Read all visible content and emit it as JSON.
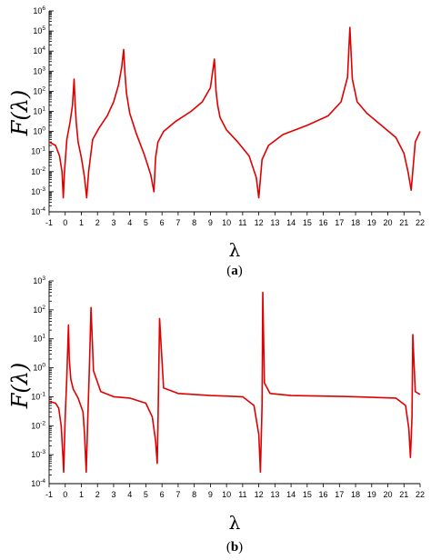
{
  "chart_data": [
    {
      "panel": "a",
      "caption": {
        "open": "(",
        "letter": "a",
        "close": ")"
      },
      "type": "line",
      "ylabel": "F(λ)",
      "xlabel": "λ",
      "xlim": [
        -1,
        22
      ],
      "ylim": [
        0.0001,
        1000000
      ],
      "yscale": "log",
      "x_ticks": [
        -1,
        0,
        1,
        2,
        3,
        4,
        5,
        6,
        7,
        8,
        9,
        10,
        11,
        12,
        13,
        14,
        15,
        16,
        17,
        18,
        19,
        20,
        21,
        22
      ],
      "y_ticks": [
        {
          "base": "10",
          "exp": "6"
        },
        {
          "base": "10",
          "exp": "5"
        },
        {
          "base": "10",
          "exp": "4"
        },
        {
          "base": "10",
          "exp": "3"
        },
        {
          "base": "10",
          "exp": "2"
        },
        {
          "base": "10",
          "exp": "1"
        },
        {
          "base": "10",
          "exp": "0"
        },
        {
          "base": "10",
          "exp": "-1"
        },
        {
          "base": "10",
          "exp": "-2"
        },
        {
          "base": "10",
          "exp": "-3"
        },
        {
          "base": "10",
          "exp": "-4"
        }
      ],
      "color": "#e00000",
      "series": [
        {
          "x": [
            -1.0,
            -0.6,
            -0.35,
            -0.2,
            -0.12,
            -0.05,
            0.1,
            0.3,
            0.45,
            0.55,
            0.62,
            0.68,
            0.8,
            1.0,
            1.2,
            1.33,
            1.45,
            1.7,
            2.1,
            2.6,
            3.0,
            3.3,
            3.5,
            3.62,
            3.7,
            3.8,
            4.0,
            4.4,
            4.9,
            5.3,
            5.5,
            5.6,
            5.75,
            6.1,
            6.8,
            7.8,
            8.5,
            9.0,
            9.25,
            9.35,
            9.45,
            9.6,
            10.0,
            10.7,
            11.4,
            11.85,
            12.0,
            12.2,
            12.6,
            13.5,
            15.0,
            16.3,
            17.1,
            17.5,
            17.65,
            17.8,
            18.1,
            18.7,
            19.6,
            20.5,
            21.0,
            21.25,
            21.45,
            21.7,
            22.0
          ],
          "y": [
            0.3,
            0.2,
            0.06,
            0.01,
            0.0005,
            0.01,
            0.4,
            3,
            20,
            400,
            20,
            3,
            0.3,
            0.05,
            0.005,
            0.0005,
            0.01,
            0.4,
            1.5,
            6,
            30,
            200,
            1500,
            12000,
            800,
            80,
            8,
            0.8,
            0.07,
            0.007,
            0.001,
            0.05,
            0.3,
            1,
            3,
            10,
            30,
            150,
            4000,
            100,
            20,
            5,
            1.2,
            0.3,
            0.06,
            0.005,
            0.0005,
            0.04,
            0.2,
            0.7,
            2,
            6,
            30,
            500,
            150000,
            400,
            30,
            8,
            2,
            0.5,
            0.08,
            0.01,
            0.0012,
            0.3,
            1
          ]
        }
      ]
    },
    {
      "panel": "b",
      "caption": {
        "open": "(",
        "letter": "b",
        "close": ")"
      },
      "type": "line",
      "ylabel": "F(λ)",
      "xlabel": "λ",
      "xlim": [
        -1,
        22
      ],
      "ylim": [
        0.0001,
        1000
      ],
      "yscale": "log",
      "x_ticks": [
        -1,
        0,
        1,
        2,
        3,
        4,
        5,
        6,
        7,
        8,
        9,
        10,
        11,
        12,
        13,
        14,
        15,
        16,
        17,
        18,
        19,
        20,
        21,
        22
      ],
      "y_ticks": [
        {
          "base": "10",
          "exp": "3"
        },
        {
          "base": "10",
          "exp": "2"
        },
        {
          "base": "10",
          "exp": "1"
        },
        {
          "base": "10",
          "exp": "0"
        },
        {
          "base": "10",
          "exp": "-1"
        },
        {
          "base": "10",
          "exp": "-2"
        },
        {
          "base": "10",
          "exp": "-3"
        },
        {
          "base": "10",
          "exp": "-4"
        }
      ],
      "color": "#e00000",
      "series": [
        {
          "x": [
            -1.0,
            -0.6,
            -0.4,
            -0.25,
            -0.15,
            -0.1,
            0.0,
            0.1,
            0.2,
            0.25,
            0.35,
            0.5,
            0.8,
            1.1,
            1.2,
            1.3,
            1.4,
            1.5,
            1.6,
            1.75,
            2.2,
            3.0,
            4.0,
            5.0,
            5.4,
            5.6,
            5.7,
            5.75,
            5.85,
            6.1,
            7.0,
            9.0,
            11.0,
            11.7,
            12.0,
            12.1,
            12.2,
            12.25,
            12.35,
            12.7,
            14.0,
            18.0,
            20.5,
            21.1,
            21.3,
            21.4,
            21.5,
            21.55,
            21.7,
            22.0
          ],
          "y": [
            0.07,
            0.06,
            0.04,
            0.01,
            0.001,
            0.00025,
            0.02,
            0.5,
            30,
            2,
            0.4,
            0.18,
            0.09,
            0.03,
            0.005,
            0.00025,
            0.02,
            1,
            120,
            0.8,
            0.15,
            0.1,
            0.09,
            0.06,
            0.02,
            0.003,
            0.0005,
            0.01,
            50,
            0.2,
            0.13,
            0.11,
            0.1,
            0.05,
            0.005,
            0.00025,
            0.05,
            400,
            0.3,
            0.13,
            0.11,
            0.1,
            0.09,
            0.05,
            0.008,
            0.0008,
            0.02,
            14,
            0.15,
            0.12
          ]
        }
      ]
    }
  ]
}
